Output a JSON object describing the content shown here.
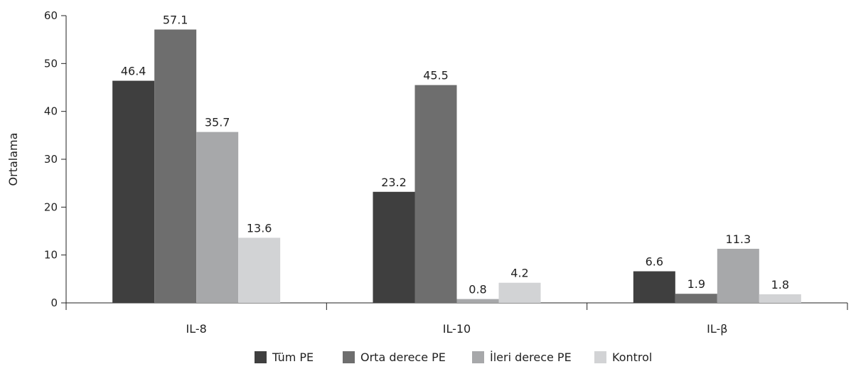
{
  "chart_data": {
    "type": "bar",
    "categories": [
      "IL-8",
      "IL-10",
      "IL-β"
    ],
    "series": [
      {
        "name": "Tüm PE",
        "values": [
          46.4,
          23.2,
          6.6
        ],
        "labels": [
          "46.4",
          "23.2",
          "6.6"
        ],
        "color": "#3f3f3f"
      },
      {
        "name": "Orta derece PE",
        "values": [
          57.1,
          45.5,
          1.9
        ],
        "labels": [
          "57.1",
          "45.5",
          "1.9"
        ],
        "color": "#6e6e6e"
      },
      {
        "name": "İleri derece PE",
        "values": [
          35.7,
          0.8,
          11.3
        ],
        "labels": [
          "35.7",
          "0.8",
          "11.3"
        ],
        "color": "#a7a8aa"
      },
      {
        "name": "Kontrol",
        "values": [
          13.6,
          4.2,
          1.8
        ],
        "labels": [
          "13.6",
          "4.2",
          "1.8"
        ],
        "color": "#d2d3d5"
      }
    ],
    "xlabel": "",
    "ylabel": "Ortalama",
    "ylim": [
      0,
      60
    ],
    "yticks": [
      "0",
      "10",
      "20",
      "30",
      "40",
      "50",
      "60"
    ],
    "grid": false,
    "legend_position": "bottom"
  }
}
